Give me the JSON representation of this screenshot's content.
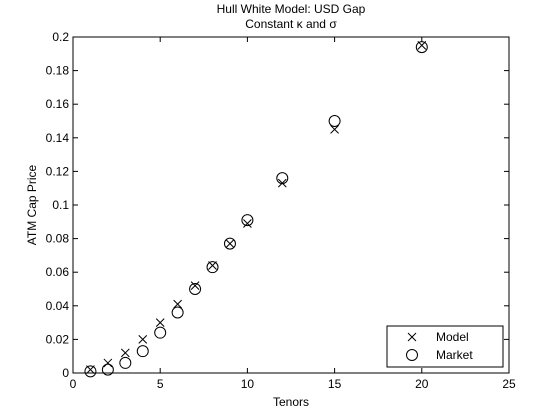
{
  "chart_data": {
    "type": "scatter",
    "title": "Hull White Model: USD Gap",
    "subtitle": "Constant κ and σ",
    "xlabel": "Tenors",
    "ylabel": "ATM Cap Price",
    "xlim": [
      0,
      25
    ],
    "ylim": [
      0,
      0.2
    ],
    "xticks": [
      0,
      5,
      10,
      15,
      20,
      25
    ],
    "yticks": [
      0,
      0.02,
      0.04,
      0.06,
      0.08,
      0.1,
      0.12,
      0.14,
      0.16,
      0.18,
      0.2
    ],
    "xtick_labels": [
      "0",
      "5",
      "10",
      "15",
      "20",
      "25"
    ],
    "ytick_labels": [
      "0",
      "0.02",
      "0.04",
      "0.06",
      "0.08",
      "0.1",
      "0.12",
      "0.14",
      "0.16",
      "0.18",
      "0.2"
    ],
    "grid": false,
    "legend": "bottom-right",
    "series": [
      {
        "name": "Model",
        "marker": "x",
        "color": "#000000",
        "x": [
          1,
          2,
          3,
          4,
          5,
          6,
          7,
          8,
          9,
          10,
          12,
          15,
          20
        ],
        "y": [
          0.002,
          0.006,
          0.012,
          0.02,
          0.03,
          0.041,
          0.052,
          0.064,
          0.077,
          0.089,
          0.113,
          0.145,
          0.195
        ]
      },
      {
        "name": "Market",
        "marker": "o",
        "color": "#000000",
        "x": [
          1,
          2,
          3,
          4,
          5,
          6,
          7,
          8,
          9,
          10,
          12,
          15,
          20
        ],
        "y": [
          0.001,
          0.002,
          0.006,
          0.013,
          0.024,
          0.036,
          0.05,
          0.063,
          0.077,
          0.091,
          0.116,
          0.15,
          0.194
        ]
      }
    ]
  }
}
